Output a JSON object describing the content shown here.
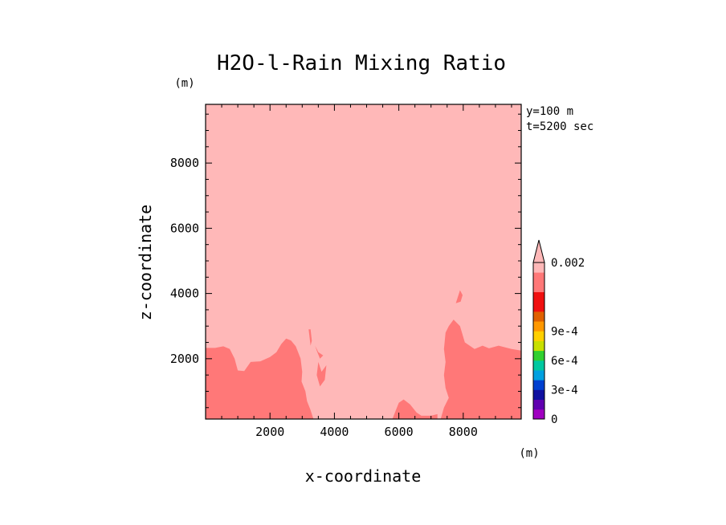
{
  "chart_data": {
    "type": "contour",
    "title": "H2O-l-Rain Mixing Ratio",
    "xlabel": "x-coordinate",
    "ylabel": "z-coordinate",
    "x_unit": "(m)",
    "y_unit": "(m)",
    "annotations": [
      "y=100 m",
      "t=5200 sec"
    ],
    "xlim": [
      0,
      9800
    ],
    "ylim": [
      150,
      9800
    ],
    "x_ticks": [
      2000,
      4000,
      6000,
      8000
    ],
    "y_ticks": [
      2000,
      4000,
      6000,
      8000
    ],
    "x_tick_labels": [
      "2000",
      "4000",
      "6000",
      "8000"
    ],
    "y_tick_labels": [
      "2000",
      "4000",
      "6000",
      "8000"
    ],
    "background_color": "#FFB8B8",
    "regions": [
      {
        "name": "left-lower-region",
        "color": "#FF7878",
        "points": [
          [
            0,
            150
          ],
          [
            0,
            2330
          ],
          [
            300,
            2330
          ],
          [
            550,
            2380
          ],
          [
            750,
            2300
          ],
          [
            900,
            2000
          ],
          [
            1000,
            1640
          ],
          [
            1200,
            1620
          ],
          [
            1400,
            1900
          ],
          [
            1700,
            1920
          ],
          [
            2000,
            2050
          ],
          [
            2200,
            2200
          ],
          [
            2350,
            2450
          ],
          [
            2500,
            2620
          ],
          [
            2650,
            2560
          ],
          [
            2800,
            2380
          ],
          [
            2950,
            2000
          ],
          [
            3000,
            1600
          ],
          [
            2980,
            1300
          ],
          [
            3100,
            1000
          ],
          [
            3150,
            700
          ],
          [
            3250,
            450
          ],
          [
            3350,
            150
          ]
        ]
      },
      {
        "name": "right-lower-region",
        "color": "#FF7878",
        "points": [
          [
            7300,
            150
          ],
          [
            7400,
            500
          ],
          [
            7550,
            800
          ],
          [
            7450,
            1100
          ],
          [
            7400,
            1500
          ],
          [
            7450,
            1900
          ],
          [
            7400,
            2300
          ],
          [
            7450,
            2800
          ],
          [
            7550,
            3000
          ],
          [
            7700,
            3200
          ],
          [
            7900,
            3000
          ],
          [
            8050,
            2500
          ],
          [
            8350,
            2300
          ],
          [
            8600,
            2400
          ],
          [
            8800,
            2320
          ],
          [
            9100,
            2400
          ],
          [
            9500,
            2300
          ],
          [
            9800,
            2250
          ],
          [
            9800,
            150
          ]
        ]
      },
      {
        "name": "center-bump-region",
        "color": "#FF7878",
        "points": [
          [
            5800,
            150
          ],
          [
            5900,
            400
          ],
          [
            6000,
            650
          ],
          [
            6150,
            750
          ],
          [
            6350,
            600
          ],
          [
            6550,
            350
          ],
          [
            6700,
            250
          ],
          [
            7000,
            250
          ],
          [
            7200,
            300
          ],
          [
            7200,
            150
          ]
        ]
      },
      {
        "name": "upper-right-patch",
        "color": "#FF7878",
        "points": [
          [
            7770,
            3700
          ],
          [
            7900,
            4100
          ],
          [
            7980,
            3950
          ],
          [
            7920,
            3750
          ]
        ]
      },
      {
        "name": "thin-sliver",
        "color": "#FF7878",
        "points": [
          [
            3200,
            2900
          ],
          [
            3260,
            2900
          ],
          [
            3300,
            2550
          ],
          [
            3260,
            2400
          ]
        ]
      },
      {
        "name": "small-patch-upper",
        "color": "#FF7878",
        "points": [
          [
            3400,
            2400
          ],
          [
            3500,
            2200
          ],
          [
            3650,
            2100
          ],
          [
            3550,
            2000
          ],
          [
            3450,
            2250
          ]
        ]
      },
      {
        "name": "small-patch-lower",
        "color": "#FF7878",
        "points": [
          [
            3500,
            1900
          ],
          [
            3600,
            1600
          ],
          [
            3750,
            1800
          ],
          [
            3700,
            1350
          ],
          [
            3550,
            1150
          ],
          [
            3450,
            1500
          ]
        ]
      }
    ],
    "colorbar": {
      "colors": [
        "#A000C0",
        "#6000B0",
        "#1010A0",
        "#0040D0",
        "#00A0E0",
        "#00C8A0",
        "#30D030",
        "#C8E000",
        "#FFD000",
        "#FF9800",
        "#E06000",
        "#F01010",
        "#F01010",
        "#FF7878",
        "#FF7878",
        "#FFB8B8"
      ],
      "tick_labels": [
        "0",
        "3e-4",
        "6e-4",
        "9e-4",
        "0.002"
      ],
      "tick_values": [
        0,
        0.0003,
        0.0006,
        0.0009,
        0.002
      ],
      "extend": "max"
    }
  }
}
